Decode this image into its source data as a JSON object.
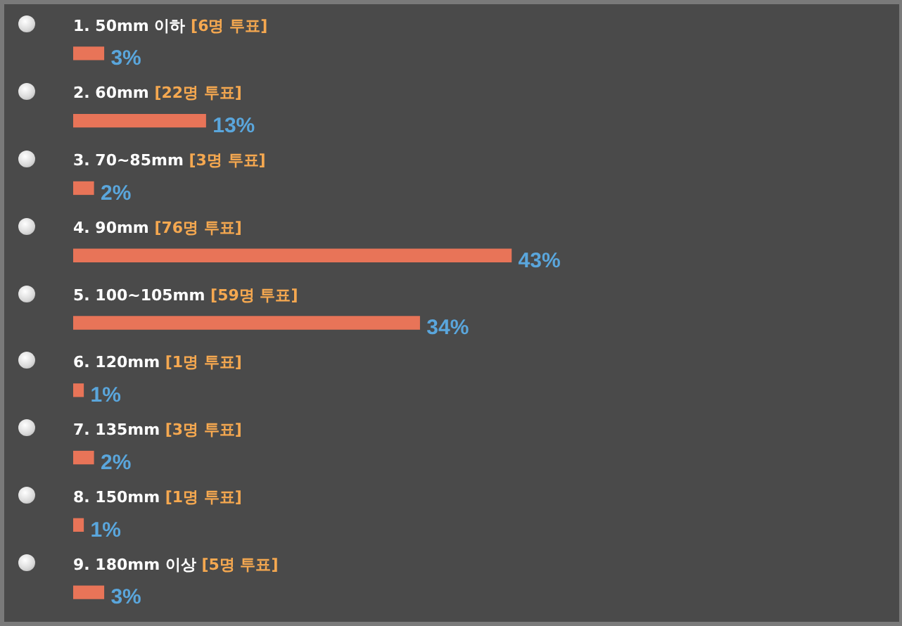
{
  "chart_data": {
    "type": "bar",
    "orientation": "horizontal",
    "categories": [
      "1. 50mm 이하 [6명 투표]",
      "2. 60mm [22명 투표]",
      "3. 70~85mm [3명 투표]",
      "4. 90mm [76명 투표]",
      "5. 100~105mm [59명 투표]",
      "6. 120mm [1명 투표]",
      "7. 135mm [3명 투표]",
      "8. 150mm [1명 투표]",
      "9. 180mm 이상 [5명 투표]"
    ],
    "values": [
      3,
      13,
      2,
      43,
      34,
      1,
      2,
      1,
      3
    ],
    "value_labels": [
      "3%",
      "13%",
      "2%",
      "43%",
      "34%",
      "1%",
      "2%",
      "1%",
      "3%"
    ],
    "color": "#e87458",
    "legend": false
  }
}
